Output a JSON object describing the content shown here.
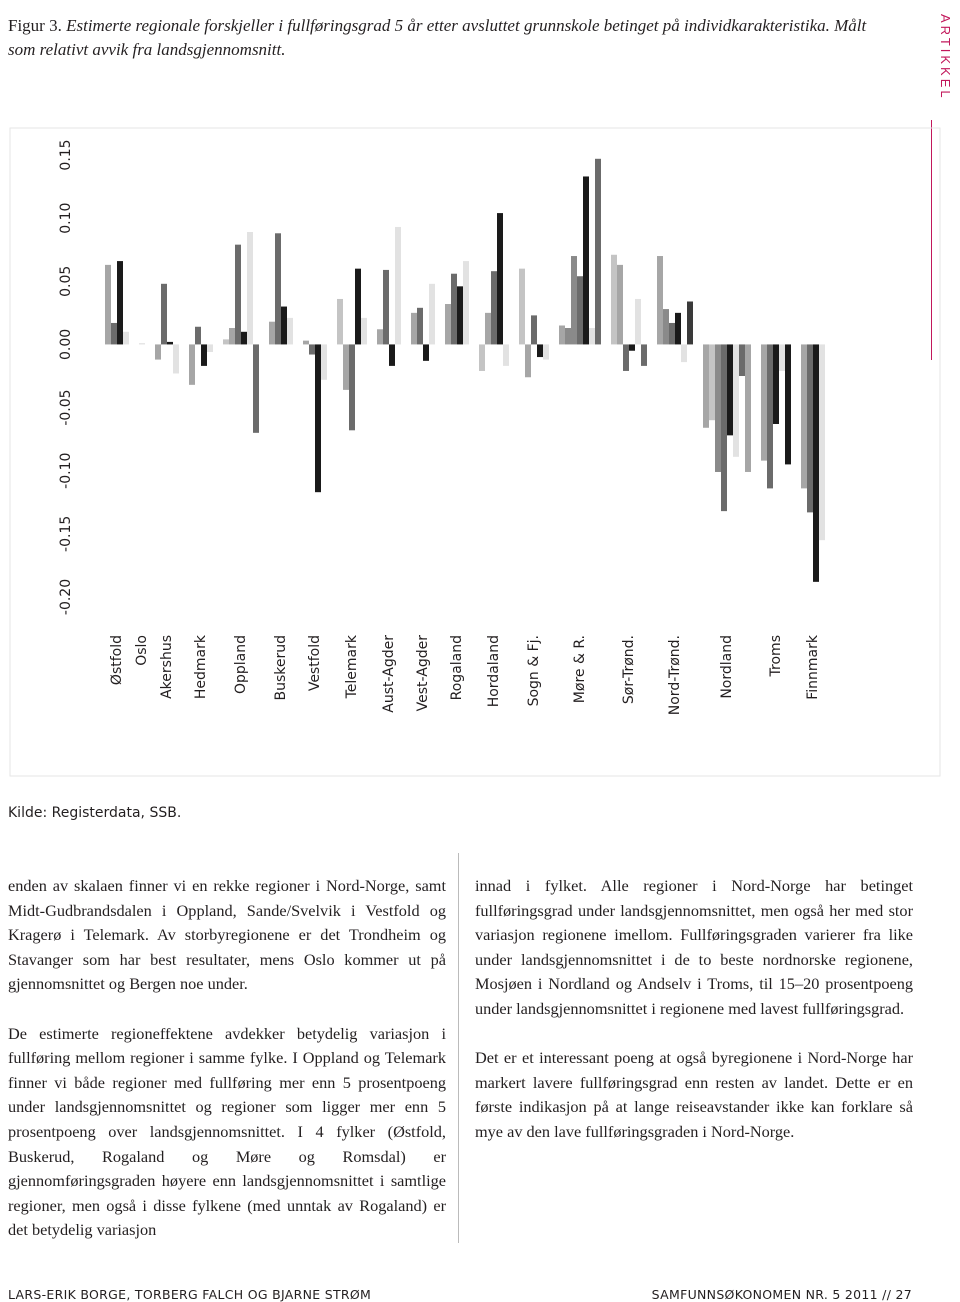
{
  "caption": {
    "lead": "Figur 3.",
    "text": "Estimerte regionale forskjeller i fullføringsgrad 5 år etter avsluttet grunnskole betinget på individkarakteristika. Målt som relativt avvik fra landsgjennomsnitt."
  },
  "sidebar": "ARTIKKEL",
  "chart_data": {
    "type": "bar",
    "categories": [
      "Østfold",
      "Oslo",
      "Akershus",
      "Hedmark",
      "Oppland",
      "Buskerud",
      "Vestfold",
      "Telemark",
      "Aust-Agder",
      "Vest-Agder",
      "Rogaland",
      "Hordaland",
      "Sogn & Fj.",
      "Møre & R.",
      "Sør-Trønd.",
      "Nord-Trønd.",
      "Nordland",
      "Troms",
      "Finnmark"
    ],
    "bars": [
      {
        "values": [
          0.063,
          0.017,
          0.066,
          0.01
        ],
        "colors": [
          "#a6a6a6",
          "#6b6b6b",
          "#1a1a1a",
          "#e2e2e2"
        ]
      },
      {
        "values": [
          0.001
        ],
        "colors": [
          "#e2e2e2"
        ]
      },
      {
        "values": [
          -0.012,
          0.048,
          0.002,
          -0.023
        ],
        "colors": [
          "#a6a6a6",
          "#6b6b6b",
          "#1a1a1a",
          "#e2e2e2"
        ]
      },
      {
        "values": [
          -0.032,
          0.014,
          -0.017,
          -0.006
        ],
        "colors": [
          "#a6a6a6",
          "#6b6b6b",
          "#1a1a1a",
          "#e2e2e2"
        ]
      },
      {
        "values": [
          0.004,
          0.013,
          0.079,
          0.01,
          0.089,
          -0.07
        ],
        "colors": [
          "#c4c4c4",
          "#a6a6a6",
          "#6b6b6b",
          "#1a1a1a",
          "#e2e2e2",
          "#6b6b6b"
        ]
      },
      {
        "values": [
          0.018,
          0.088,
          0.03,
          0.021
        ],
        "colors": [
          "#a6a6a6",
          "#6b6b6b",
          "#1a1a1a",
          "#e2e2e2"
        ]
      },
      {
        "values": [
          0.003,
          -0.008,
          -0.117,
          -0.028
        ],
        "colors": [
          "#a6a6a6",
          "#6b6b6b",
          "#1a1a1a",
          "#e2e2e2"
        ]
      },
      {
        "values": [
          0.036,
          -0.036,
          -0.068,
          0.06,
          0.021
        ],
        "colors": [
          "#c4c4c4",
          "#a6a6a6",
          "#6b6b6b",
          "#1a1a1a",
          "#e2e2e2"
        ]
      },
      {
        "values": [
          0.012,
          0.059,
          -0.017,
          0.093
        ],
        "colors": [
          "#a6a6a6",
          "#6b6b6b",
          "#1a1a1a",
          "#e2e2e2"
        ]
      },
      {
        "values": [
          0.025,
          0.029,
          -0.013,
          0.048
        ],
        "colors": [
          "#a6a6a6",
          "#6b6b6b",
          "#1a1a1a",
          "#e2e2e2"
        ]
      },
      {
        "values": [
          0.032,
          0.056,
          0.046,
          0.066
        ],
        "colors": [
          "#a6a6a6",
          "#6b6b6b",
          "#1a1a1a",
          "#e2e2e2"
        ]
      },
      {
        "values": [
          -0.021,
          0.025,
          0.058,
          0.104,
          -0.017
        ],
        "colors": [
          "#c4c4c4",
          "#a6a6a6",
          "#6b6b6b",
          "#1a1a1a",
          "#e2e2e2"
        ]
      },
      {
        "values": [
          0.06,
          -0.026,
          0.023,
          -0.01,
          -0.012
        ],
        "colors": [
          "#c4c4c4",
          "#a6a6a6",
          "#6b6b6b",
          "#1a1a1a",
          "#e2e2e2"
        ]
      },
      {
        "values": [
          0.015,
          0.013,
          0.07,
          0.054,
          0.133,
          0.013,
          0.147
        ],
        "colors": [
          "#a6a6a6",
          "#8a8a8a",
          "#8a8a8a",
          "#6b6b6b",
          "#1a1a1a",
          "#e2e2e2",
          "#6b6b6b"
        ]
      },
      {
        "values": [
          0.071,
          0.063,
          -0.021,
          -0.005,
          0.036,
          -0.017
        ],
        "colors": [
          "#c4c4c4",
          "#a6a6a6",
          "#6b6b6b",
          "#1a1a1a",
          "#e2e2e2",
          "#6b6b6b"
        ]
      },
      {
        "values": [
          0.07,
          0.028,
          0.017,
          0.025,
          -0.014,
          0.034
        ],
        "colors": [
          "#a6a6a6",
          "#8a8a8a",
          "#6b6b6b",
          "#1a1a1a",
          "#e2e2e2",
          "#3a3a3a"
        ]
      },
      {
        "values": [
          -0.066,
          -0.06,
          -0.101,
          -0.132,
          -0.072,
          -0.089,
          -0.025,
          -0.101
        ],
        "colors": [
          "#a6a6a6",
          "#c4c4c4",
          "#8a8a8a",
          "#6b6b6b",
          "#1a1a1a",
          "#e2e2e2",
          "#6b6b6b",
          "#a6a6a6"
        ]
      },
      {
        "values": [
          -0.092,
          -0.114,
          -0.063,
          -0.021,
          -0.095
        ],
        "colors": [
          "#a6a6a6",
          "#6b6b6b",
          "#1a1a1a",
          "#e2e2e2",
          "#1a1a1a"
        ]
      },
      {
        "values": [
          -0.114,
          -0.133,
          -0.188,
          -0.155
        ],
        "colors": [
          "#a6a6a6",
          "#6b6b6b",
          "#1a1a1a",
          "#e2e2e2"
        ]
      }
    ],
    "ylim": [
      -0.2,
      0.15
    ],
    "yticks": [
      {
        "value": -0.2,
        "label": "-0.20"
      },
      -0.15,
      {
        "value": -0.1,
        "label": "-0.10"
      },
      -0.05,
      {
        "value": 0,
        "label": "0.00"
      },
      0.05,
      {
        "value": 0.1,
        "label": "0.10"
      },
      0.15
    ]
  },
  "source": "Kilde: Registerdata, SSB.",
  "body": {
    "left": [
      "enden av skalaen finner vi en rekke regioner i Nord-Norge, samt Midt-Gudbrandsdalen i Oppland, Sande/Svelvik i Vestfold og Kragerø i Telemark. Av storbyregionene er det Trondheim og Stavanger som har best resultater, mens Oslo kommer ut på gjennomsnittet og Bergen noe under.",
      "De estimerte regioneffektene avdekker betydelig variasjon i fullføring mellom regioner i samme fylke. I Oppland og Telemark finner vi både regioner med fullføring mer enn 5 prosentpoeng under landsgjennomsnittet og regioner som ligger mer enn 5 prosentpoeng over landsgjennomsnittet. I 4 fylker (Østfold, Buskerud, Rogaland og Møre og Romsdal) er gjennomføringsgraden høyere enn landsgjennomsnittet i samtlige regioner, men også i disse fylkene (med unntak av Rogaland) er det betydelig variasjon"
    ],
    "right": [
      "innad i fylket. Alle regioner i Nord-Norge har betinget fullføringsgrad under landsgjennomsnittet, men også her med stor variasjon regionene imellom. Fullføringsgraden varierer fra like under landsgjennomsnittet i de to beste nordnorske regionene, Mosjøen i Nordland og Andselv i Troms, til 15–20 prosentpoeng under landsgjennomsnittet i regionene med lavest fullføringsgrad.",
      "Det er et interessant poeng at også byregionene i Nord-Norge har markert lavere fullføringsgrad enn resten av landet. Dette er en første indikasjon på at lange reiseavstander ikke kan forklare så mye av den lave fullføringsgraden i Nord-Norge."
    ]
  },
  "footer": {
    "left": "LARS-ERIK BORGE, TORBERG FALCH OG BJARNE STRØM",
    "right": "SAMFUNNSØKONOMEN NR. 5 2011 // 27"
  }
}
